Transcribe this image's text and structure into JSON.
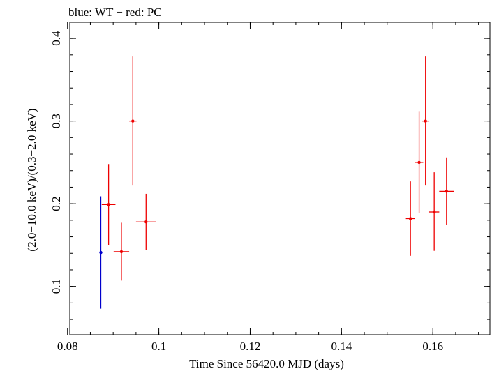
{
  "chart_data": {
    "type": "scatter",
    "title": "blue: WT − red: PC",
    "xlabel": "Time Since 56420.0 MJD (days)",
    "ylabel": "(2.0−10.0 keV)/(0.3−2.0 keV)",
    "xlim": [
      0.0805,
      0.1725
    ],
    "ylim": [
      0.0415,
      0.4195
    ],
    "x_major_ticks": [
      0.08,
      0.1,
      0.12,
      0.14,
      0.16
    ],
    "x_tick_labels": [
      "0.08",
      "0.1",
      "0.12",
      "0.14",
      "0.16"
    ],
    "x_minor_step": 0.005,
    "y_major_ticks": [
      0.1,
      0.2,
      0.3,
      0.4
    ],
    "y_tick_labels": [
      "0.1",
      "0.2",
      "0.3",
      "0.4"
    ],
    "y_minor_step": 0.02,
    "grid": false,
    "series": [
      {
        "name": "WT",
        "color": "#0000cc",
        "points": [
          {
            "x": 0.0873,
            "y": 0.141,
            "xerr": 0.0,
            "ylo": 0.073,
            "yhi": 0.209
          }
        ]
      },
      {
        "name": "PC",
        "color": "#ee0000",
        "points": [
          {
            "x": 0.089,
            "y": 0.199,
            "xerr": 0.0015,
            "ylo": 0.15,
            "yhi": 0.248
          },
          {
            "x": 0.0918,
            "y": 0.142,
            "xerr": 0.0017,
            "ylo": 0.107,
            "yhi": 0.177
          },
          {
            "x": 0.0943,
            "y": 0.3,
            "xerr": 0.0008,
            "ylo": 0.222,
            "yhi": 0.378
          },
          {
            "x": 0.0972,
            "y": 0.178,
            "xerr": 0.0022,
            "ylo": 0.144,
            "yhi": 0.212
          },
          {
            "x": 0.1551,
            "y": 0.182,
            "xerr": 0.001,
            "ylo": 0.137,
            "yhi": 0.227
          },
          {
            "x": 0.157,
            "y": 0.25,
            "xerr": 0.0009,
            "ylo": 0.189,
            "yhi": 0.312
          },
          {
            "x": 0.1584,
            "y": 0.3,
            "xerr": 0.0008,
            "ylo": 0.222,
            "yhi": 0.378
          },
          {
            "x": 0.1603,
            "y": 0.19,
            "xerr": 0.0011,
            "ylo": 0.143,
            "yhi": 0.238
          },
          {
            "x": 0.163,
            "y": 0.215,
            "xerr": 0.0016,
            "ylo": 0.174,
            "yhi": 0.256
          }
        ]
      }
    ]
  }
}
